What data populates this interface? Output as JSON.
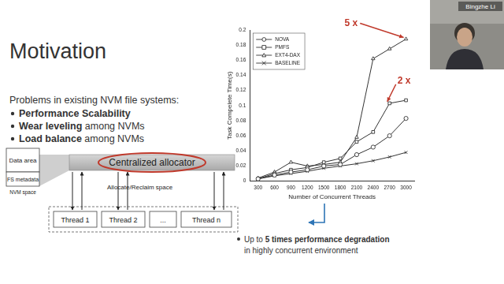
{
  "slide": {
    "title": "Motivation",
    "intro": "Problems in existing NVM file systems:",
    "bullets": [
      {
        "bold": "Performance Scalability"
      },
      {
        "bold": "Wear leveling",
        "text": " among NVMs"
      },
      {
        "bold": "Load balance",
        "text": " among NVMs"
      }
    ],
    "diagram": {
      "allocator": "Centralized allocator",
      "data_area": "Data area",
      "fs_metadata": "FS metadata",
      "nvm_space": "NVM space",
      "arrow_label": "Allocate/Reclaim space",
      "threads": [
        "Thread 1",
        "Thread 2",
        "...",
        "Thread n"
      ]
    },
    "finding": {
      "text": "Up to ",
      "bold": "5 times performance degradation",
      "tail": " in highly concurrent environment"
    },
    "speaker": "Bingzhe Li"
  },
  "chart_data": {
    "type": "line",
    "x_label": "Number of Concurrent Threads",
    "y_label": "Task Compelete Time(s)",
    "categories": [
      "300",
      "600",
      "900",
      "1200",
      "1500",
      "1800",
      "2100",
      "2400",
      "2700",
      "3000"
    ],
    "series": [
      {
        "name": "NOVA",
        "color": "#333333",
        "marker": "circle",
        "values": [
          0.003,
          0.008,
          0.012,
          0.015,
          0.02,
          0.022,
          0.035,
          0.045,
          0.06,
          0.083
        ]
      },
      {
        "name": "PMFS",
        "color": "#333333",
        "marker": "square",
        "values": [
          0.003,
          0.01,
          0.015,
          0.018,
          0.025,
          0.03,
          0.052,
          0.065,
          0.103,
          0.107
        ]
      },
      {
        "name": "EXT4-DAX",
        "color": "#333333",
        "marker": "triangle",
        "values": [
          0.004,
          0.012,
          0.025,
          0.02,
          0.022,
          0.025,
          0.058,
          0.162,
          0.175,
          0.188
        ]
      },
      {
        "name": "BASELINE",
        "color": "#333333",
        "marker": "cross",
        "values": [
          0.003,
          0.007,
          0.01,
          0.013,
          0.017,
          0.02,
          0.023,
          0.027,
          0.032,
          0.038
        ]
      }
    ],
    "ylim": [
      0,
      0.2
    ],
    "yticks": [
      0,
      0.02,
      0.04,
      0.06,
      0.08,
      0.1,
      0.12,
      0.14,
      0.16,
      0.18,
      0.2
    ],
    "grid": false,
    "legend": "top-left",
    "annotations": [
      "5 x",
      "2 x"
    ]
  }
}
